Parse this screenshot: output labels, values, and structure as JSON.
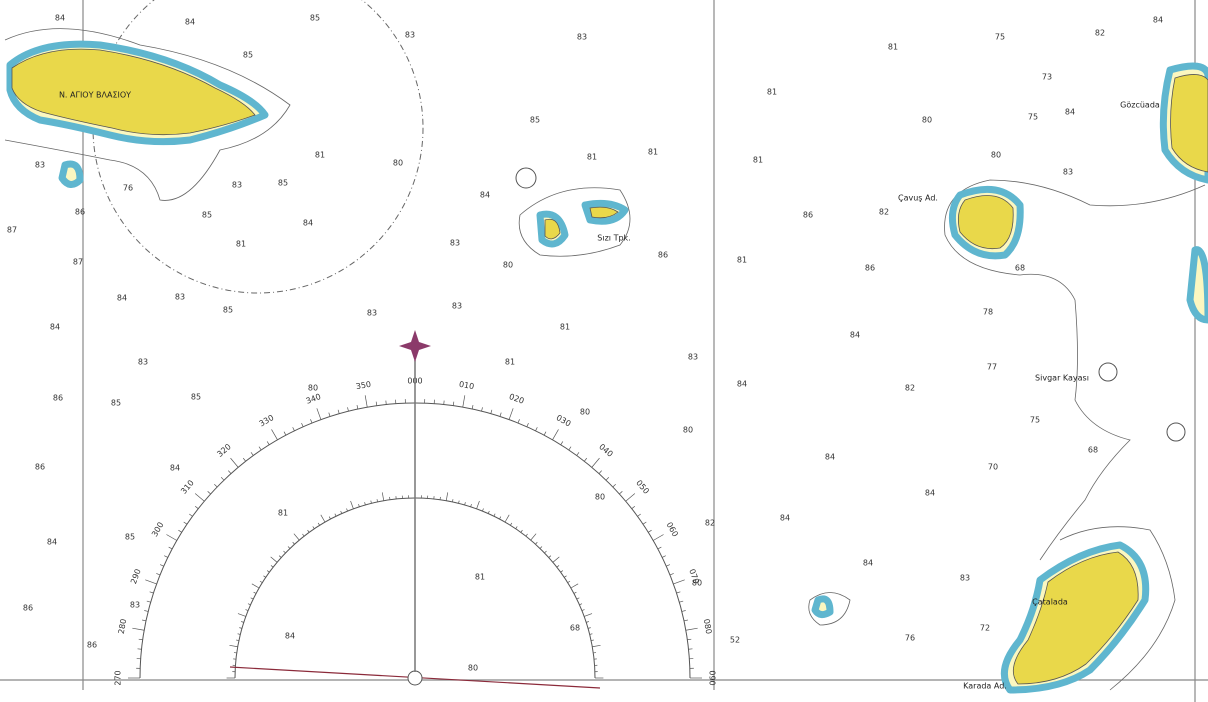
{
  "places": [
    "Ν. ΑΓΙΟΥ ΒΛΑΣΙΟΥ",
    "Çavuş Ad.",
    "Gözcüada",
    "Sivgar Kayası",
    "Çatalada",
    "Karada Ad.",
    "Sızı Tpk."
  ],
  "compass_labels": [
    "270",
    "280",
    "290",
    "300",
    "310",
    "320",
    "330",
    "340",
    "350",
    "000",
    "010",
    "020",
    "030",
    "040",
    "050",
    "060",
    "070",
    "080",
    "090"
  ],
  "soundings": [
    "84",
    "84",
    "85",
    "83",
    "83",
    "81",
    "75",
    "82",
    "84",
    "85",
    "81",
    "73",
    "85",
    "80",
    "75",
    "84",
    "81",
    "80",
    "81",
    "81",
    "81",
    "80",
    "83",
    "76",
    "83",
    "85",
    "84",
    "83",
    "87",
    "86",
    "85",
    "84",
    "83",
    "86",
    "82",
    "81",
    "80",
    "86",
    "81",
    "86",
    "68",
    "87",
    "84",
    "83",
    "85",
    "83",
    "83",
    "81",
    "84",
    "84",
    "78",
    "83",
    "81",
    "83",
    "77",
    "86",
    "85",
    "85",
    "80",
    "80",
    "84",
    "82",
    "80",
    "75",
    "86",
    "84",
    "84",
    "70",
    "68",
    "84",
    "80",
    "81",
    "82",
    "84",
    "84",
    "85",
    "81",
    "84",
    "83",
    "86",
    "83",
    "80",
    "68",
    "84",
    "52",
    "76",
    "72",
    "86",
    "80"
  ]
}
